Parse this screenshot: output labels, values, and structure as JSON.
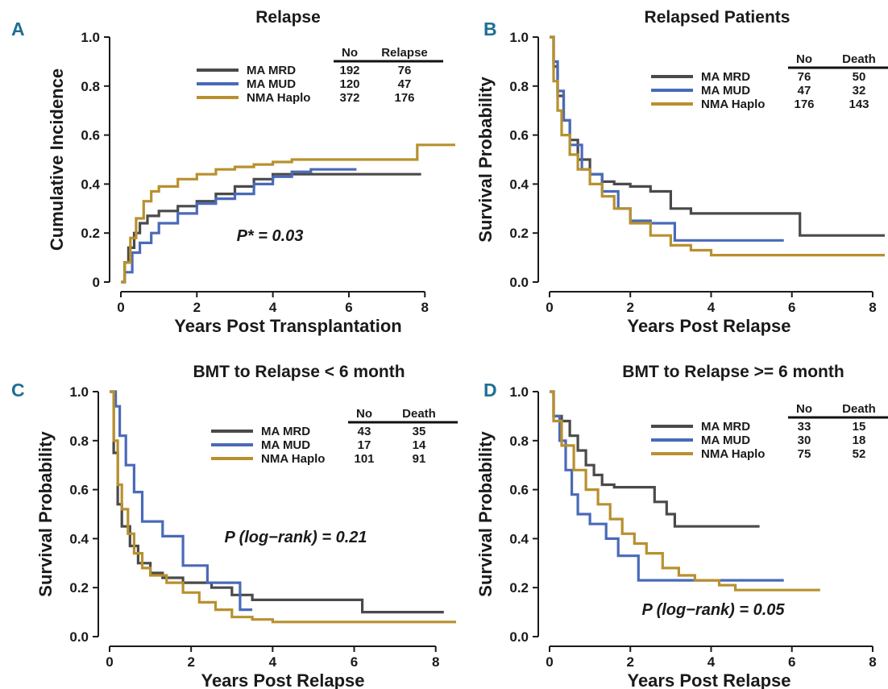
{
  "chart_data": [
    {
      "panel": "A",
      "type": "line",
      "title": "Relapse",
      "xlabel": "Years Post Transplantation",
      "ylabel": "Cumulative Incidence",
      "xlim": [
        0,
        8.8
      ],
      "ylim": [
        0,
        1.0
      ],
      "xticks": [
        0,
        2,
        4,
        6,
        8
      ],
      "yticks": [
        0,
        0.2,
        0.4,
        0.6,
        0.8,
        1.0
      ],
      "ytick_labels": [
        "0",
        "0.2",
        "0.4",
        "0.6",
        "0.8",
        "1.0"
      ],
      "legend": {
        "placement": "top-right",
        "col1": "No",
        "col2": "Relapse"
      },
      "annotation": "P* = 0.03",
      "series": [
        {
          "name": "MA MRD",
          "color": "#4a4a4a",
          "no": "192",
          "events": "76",
          "x": [
            0,
            0.1,
            0.2,
            0.35,
            0.5,
            0.7,
            1.0,
            1.5,
            2.0,
            2.5,
            3.0,
            3.5,
            4.0,
            5.0,
            6.0,
            7.0,
            7.9
          ],
          "y": [
            0,
            0.08,
            0.14,
            0.2,
            0.24,
            0.27,
            0.29,
            0.31,
            0.33,
            0.36,
            0.39,
            0.42,
            0.44,
            0.44,
            0.44,
            0.44,
            0.44
          ]
        },
        {
          "name": "MA MUD",
          "color": "#4a6ab8",
          "no": "120",
          "events": "47",
          "x": [
            0,
            0.1,
            0.3,
            0.5,
            0.8,
            1.0,
            1.5,
            2.0,
            2.5,
            3.0,
            3.5,
            4.0,
            4.5,
            5.0,
            6.2
          ],
          "y": [
            0,
            0.04,
            0.12,
            0.16,
            0.2,
            0.24,
            0.28,
            0.32,
            0.34,
            0.36,
            0.4,
            0.43,
            0.45,
            0.46,
            0.46
          ]
        },
        {
          "name": "NMA Haplo",
          "color": "#b8902e",
          "no": "372",
          "events": "176",
          "x": [
            0,
            0.1,
            0.25,
            0.4,
            0.6,
            0.8,
            1.0,
            1.5,
            2.0,
            2.5,
            3.0,
            3.5,
            4.0,
            4.5,
            5.0,
            6.0,
            7.0,
            7.8,
            7.8,
            8.8
          ],
          "y": [
            0,
            0.08,
            0.18,
            0.26,
            0.33,
            0.37,
            0.39,
            0.42,
            0.44,
            0.46,
            0.47,
            0.48,
            0.49,
            0.5,
            0.5,
            0.5,
            0.5,
            0.5,
            0.56,
            0.56
          ]
        }
      ]
    },
    {
      "panel": "B",
      "type": "line",
      "title": "Relapsed Patients",
      "xlabel": "Years Post Relapse",
      "ylabel": "Survival Probability",
      "xlim": [
        0,
        8.3
      ],
      "ylim": [
        0,
        1.0
      ],
      "xticks": [
        0,
        2,
        4,
        6,
        8
      ],
      "yticks": [
        0,
        0.2,
        0.4,
        0.6,
        0.8,
        1.0
      ],
      "ytick_labels": [
        "0.0",
        "0.2",
        "0.4",
        "0.6",
        "0.8",
        "1.0"
      ],
      "legend": {
        "placement": "top-right",
        "col1": "No",
        "col2": "Death"
      },
      "annotation": "",
      "series": [
        {
          "name": "MA MRD",
          "color": "#4a4a4a",
          "no": "76",
          "events": "50",
          "x": [
            0,
            0.1,
            0.2,
            0.35,
            0.5,
            0.7,
            1.0,
            1.3,
            1.6,
            2.0,
            2.5,
            3.0,
            3.5,
            4.0,
            5.0,
            6.2,
            6.2,
            8.3
          ],
          "y": [
            1.0,
            0.88,
            0.76,
            0.66,
            0.58,
            0.5,
            0.44,
            0.41,
            0.4,
            0.39,
            0.37,
            0.3,
            0.28,
            0.28,
            0.28,
            0.28,
            0.19,
            0.19
          ]
        },
        {
          "name": "MA MUD",
          "color": "#4a6ab8",
          "no": "47",
          "events": "32",
          "x": [
            0,
            0.1,
            0.2,
            0.35,
            0.5,
            0.8,
            1.0,
            1.3,
            1.7,
            2.0,
            2.5,
            3.0,
            3.1,
            4.0,
            5.0,
            5.8
          ],
          "y": [
            1.0,
            0.9,
            0.78,
            0.66,
            0.56,
            0.46,
            0.44,
            0.37,
            0.3,
            0.25,
            0.24,
            0.24,
            0.17,
            0.17,
            0.17,
            0.17
          ]
        },
        {
          "name": "NMA Haplo",
          "color": "#b8902e",
          "no": "176",
          "events": "143",
          "x": [
            0,
            0.1,
            0.2,
            0.3,
            0.5,
            0.7,
            1.0,
            1.3,
            1.6,
            2.0,
            2.5,
            3.0,
            3.5,
            4.0,
            5.0,
            6.0,
            7.0,
            8.3
          ],
          "y": [
            1.0,
            0.82,
            0.7,
            0.6,
            0.52,
            0.46,
            0.4,
            0.35,
            0.3,
            0.24,
            0.19,
            0.15,
            0.13,
            0.11,
            0.11,
            0.11,
            0.11,
            0.11
          ]
        }
      ]
    },
    {
      "panel": "C",
      "type": "line",
      "title": "BMT to Relapse  < 6 month",
      "xlabel": "Years Post Relapse",
      "ylabel": "Survival Probability",
      "xlim": [
        0,
        8.5
      ],
      "ylim": [
        0,
        1.0
      ],
      "xticks": [
        0,
        2,
        4,
        6,
        8
      ],
      "yticks": [
        0,
        0.2,
        0.4,
        0.6,
        0.8,
        1.0
      ],
      "ytick_labels": [
        "0.0",
        "0.2",
        "0.4",
        "0.6",
        "0.8",
        "1.0"
      ],
      "legend": {
        "placement": "top-right",
        "col1": "No",
        "col2": "Death"
      },
      "annotation": "P (log−rank) = 0.21",
      "series": [
        {
          "name": "MA MRD",
          "color": "#4a4a4a",
          "no": "43",
          "events": "35",
          "x": [
            0,
            0.1,
            0.2,
            0.3,
            0.5,
            0.7,
            1.0,
            1.3,
            1.8,
            2.5,
            3.0,
            3.5,
            4.0,
            5.0,
            6.2,
            6.2,
            8.2
          ],
          "y": [
            1.0,
            0.75,
            0.54,
            0.45,
            0.37,
            0.3,
            0.26,
            0.24,
            0.22,
            0.2,
            0.17,
            0.15,
            0.15,
            0.15,
            0.15,
            0.1,
            0.1
          ]
        },
        {
          "name": "MA MUD",
          "color": "#4a6ab8",
          "no": "17",
          "events": "14",
          "x": [
            0,
            0.15,
            0.25,
            0.4,
            0.6,
            0.8,
            1.3,
            1.8,
            2.4,
            3.0,
            3.2,
            3.5
          ],
          "y": [
            1.0,
            0.94,
            0.82,
            0.7,
            0.59,
            0.47,
            0.41,
            0.29,
            0.22,
            0.22,
            0.11,
            0.11
          ]
        },
        {
          "name": "NMA Haplo",
          "color": "#b8902e",
          "no": "101",
          "events": "91",
          "x": [
            0,
            0.1,
            0.2,
            0.3,
            0.45,
            0.6,
            0.8,
            1.0,
            1.4,
            1.8,
            2.2,
            2.6,
            3.0,
            3.5,
            4.0,
            5.0,
            6.0,
            8.5
          ],
          "y": [
            1.0,
            0.8,
            0.62,
            0.52,
            0.42,
            0.34,
            0.28,
            0.25,
            0.22,
            0.18,
            0.14,
            0.11,
            0.08,
            0.07,
            0.06,
            0.06,
            0.06,
            0.06
          ]
        }
      ]
    },
    {
      "panel": "D",
      "type": "line",
      "title": "BMT to Relapse  >= 6 month",
      "xlabel": "Years Post Relapse",
      "ylabel": "Survival Probability",
      "xlim": [
        0,
        8.3
      ],
      "ylim": [
        0,
        1.0
      ],
      "xticks": [
        0,
        2,
        4,
        6,
        8
      ],
      "yticks": [
        0,
        0.2,
        0.4,
        0.6,
        0.8,
        1.0
      ],
      "ytick_labels": [
        "0.0",
        "0.2",
        "0.4",
        "0.6",
        "0.8",
        "1.0"
      ],
      "legend": {
        "placement": "top-right",
        "col1": "No",
        "col2": "Death"
      },
      "annotation": "P (log−rank) = 0.05",
      "series": [
        {
          "name": "MA MRD",
          "color": "#4a4a4a",
          "no": "33",
          "events": "15",
          "x": [
            0,
            0.1,
            0.3,
            0.5,
            0.7,
            0.9,
            1.1,
            1.3,
            1.6,
            2.0,
            2.6,
            2.9,
            3.1,
            4.0,
            5.2
          ],
          "y": [
            1.0,
            0.9,
            0.88,
            0.82,
            0.76,
            0.7,
            0.66,
            0.62,
            0.61,
            0.61,
            0.55,
            0.5,
            0.45,
            0.45,
            0.45
          ]
        },
        {
          "name": "MA MUD",
          "color": "#4a6ab8",
          "no": "30",
          "events": "18",
          "x": [
            0,
            0.1,
            0.25,
            0.4,
            0.55,
            0.7,
            1.0,
            1.4,
            1.7,
            2.2,
            2.8,
            3.5,
            4.5,
            5.8
          ],
          "y": [
            1.0,
            0.9,
            0.8,
            0.68,
            0.58,
            0.5,
            0.46,
            0.4,
            0.33,
            0.23,
            0.23,
            0.23,
            0.23,
            0.23
          ]
        },
        {
          "name": "NMA Haplo",
          "color": "#b8902e",
          "no": "75",
          "events": "52",
          "x": [
            0,
            0.1,
            0.3,
            0.6,
            0.9,
            1.2,
            1.5,
            1.8,
            2.1,
            2.4,
            2.8,
            3.2,
            3.6,
            4.2,
            4.6,
            5.5,
            6.7
          ],
          "y": [
            1.0,
            0.88,
            0.78,
            0.68,
            0.6,
            0.54,
            0.48,
            0.42,
            0.38,
            0.34,
            0.28,
            0.25,
            0.23,
            0.21,
            0.19,
            0.19,
            0.19
          ]
        }
      ]
    }
  ]
}
